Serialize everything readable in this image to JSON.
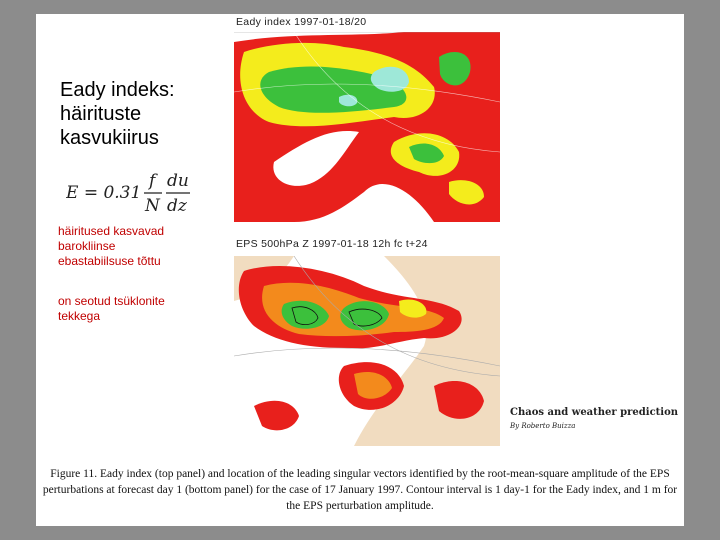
{
  "slide": {
    "title": "Eady indeks:\nhäirituste\nkasvukiirus",
    "formula": {
      "lhs": "E = 0.31",
      "f": "f",
      "N": "N",
      "du": "du",
      "dz": "dz"
    },
    "bullets": [
      "häiritused kasvavad\nbarokliinse\nebastabiilsuse tõttu",
      "on seotud tsüklonite\ntekkega"
    ]
  },
  "figure": {
    "top_label": "Eady index 1997-01-18/20",
    "bottom_label": "EPS 500hPa Z 1997-01-18 12h fc t+24",
    "credit_title": "Chaos and weather prediction",
    "credit_author": "By Roberto Buizza",
    "caption": "Figure 11. Eady index (top panel) and location of the leading singular vectors identified by the root-mean-square amplitude of the EPS perturbations at forecast day 1 (bottom panel) for the case of 17 January 1997. Contour interval is 1 day-1 for the Eady index, and 1 m for the EPS perturbation amplitude."
  },
  "colors": {
    "background": "#8c8c8c",
    "bullet_text": "#c00000",
    "map_red": "#e8201c",
    "map_orange": "#f38a1c",
    "map_yellow": "#f4ec1c",
    "map_green": "#3cc03c",
    "map_cyan": "#9ee8d8",
    "land": "#f1dcc0"
  }
}
